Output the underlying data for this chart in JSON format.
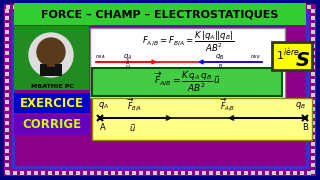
{
  "bg_outer": "#8B008B",
  "bg_inner": "#7B00A0",
  "title_text": "FORCE – CHAMP – ELECTROSTATIQUES",
  "title_bg": "#90ee90",
  "title_fg": "#000000",
  "formula_bg": "#90ee90",
  "green_bg": "#228B22",
  "green_panel_bg": "#32CD32",
  "label_mbathie": "MBATHIE PC",
  "exercice_text": "EXERCICE",
  "corrige_text": "CORRIGE",
  "exercice_color": "#ffff00",
  "corrige_color": "#ccff00",
  "exercice_bg": "#0000cc",
  "corrige_bg": "#6600aa",
  "bottom_panel_bg": "#ffff88",
  "outer_frame_color": "#000080",
  "inner_frame_color": "#4444cc",
  "deco_color": "#aaaaaa",
  "white_box_bg": "#ffffff",
  "niveau_bg": "#ffff00"
}
